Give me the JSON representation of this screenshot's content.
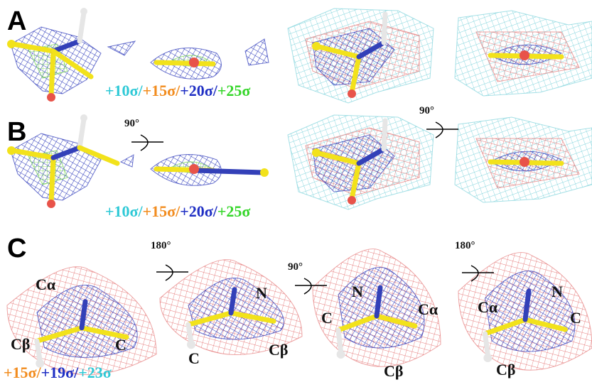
{
  "panel_a": {
    "label": "A",
    "legend": [
      {
        "text": "+10σ/",
        "color": "#2ec9d6"
      },
      {
        "text": "+15σ/",
        "color": "#f28c1e"
      },
      {
        "text": "+20σ/",
        "color": "#1f2fc4"
      },
      {
        "text": "+25σ",
        "color": "#35d62a"
      }
    ]
  },
  "panel_b": {
    "label": "B",
    "rotations": [
      "90°",
      "90°"
    ],
    "legend": [
      {
        "text": "+10σ/",
        "color": "#2ec9d6"
      },
      {
        "text": "+15σ/",
        "color": "#f28c1e"
      },
      {
        "text": "+20σ/",
        "color": "#1f2fc4"
      },
      {
        "text": "+25σ",
        "color": "#35d62a"
      }
    ]
  },
  "panel_c": {
    "label": "C",
    "rotations": [
      "180°",
      "90°",
      "180°"
    ],
    "atoms": [
      [
        "Cα",
        "Cβ",
        "C"
      ],
      [
        "N",
        "C",
        "Cβ"
      ],
      [
        "N",
        "C",
        "Cα",
        "Cβ"
      ],
      [
        "Cα",
        "N",
        "C",
        "Cβ"
      ]
    ],
    "legend": [
      {
        "text": "+15σ/",
        "color": "#f28c1e"
      },
      {
        "text": "+19σ/",
        "color": "#1f2fc4"
      },
      {
        "text": "+23σ",
        "color": "#2ec9d6"
      }
    ]
  }
}
